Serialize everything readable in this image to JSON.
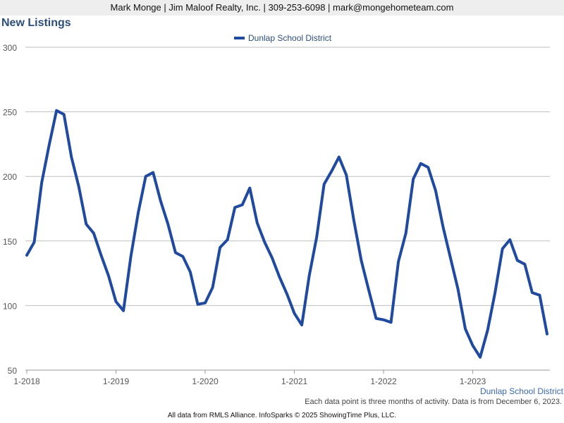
{
  "header": {
    "contact_line": "Mark Monge | Jim Maloof Realty, Inc. | 309-253-6098 | mark@mongehometeam.com"
  },
  "chart_data": {
    "type": "line",
    "title": "New Listings",
    "series_label": "Dunlap School District",
    "footnote": "Each data point is three months of activity. Data is from December 6, 2023.",
    "xlabel": "",
    "ylabel": "",
    "ylim": [
      50,
      300
    ],
    "y_ticks": [
      50,
      100,
      150,
      200,
      250,
      300
    ],
    "x_ticks": [
      "1-2018",
      "1-2019",
      "1-2020",
      "1-2021",
      "1-2022",
      "1-2023"
    ],
    "x_start": "2018-01",
    "grid": true,
    "legend": "top-center",
    "series": [
      {
        "name": "Dunlap School District",
        "color": "#1f4aa0",
        "values": [
          139,
          149,
          195,
          224,
          251,
          248,
          215,
          192,
          163,
          156,
          139,
          123,
          103,
          96,
          138,
          172,
          200,
          203,
          181,
          163,
          141,
          138,
          126,
          101,
          102,
          114,
          145,
          151,
          176,
          178,
          191,
          164,
          149,
          137,
          122,
          109,
          94,
          85,
          123,
          153,
          194,
          204,
          215,
          201,
          166,
          135,
          112,
          90,
          89,
          87,
          134,
          156,
          198,
          210,
          207,
          189,
          161,
          137,
          113,
          82,
          69,
          60,
          81,
          110,
          144,
          151,
          135,
          132,
          110,
          108,
          78
        ]
      }
    ]
  },
  "source_note": "All data from RMLS Alliance. InfoSparks © 2025 ShowingTime Plus, LLC."
}
